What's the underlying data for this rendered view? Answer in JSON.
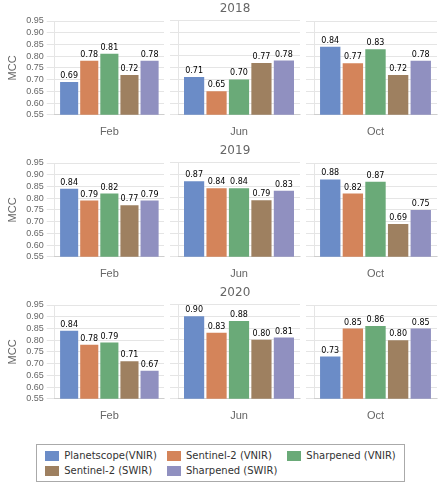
{
  "chart_data": [
    {
      "type": "bar",
      "ylabel": "MCC",
      "categories": [
        "Feb"
      ],
      "series": [
        {
          "name": "Planetscope(VNIR)",
          "color": "#6b8cc7",
          "values": [
            0.69
          ],
          "value_labels": [
            "0.69"
          ]
        },
        {
          "name": "Sentinel-2 (VNIR)",
          "color": "#d4845a",
          "values": [
            0.78
          ],
          "value_labels": [
            "0.78"
          ]
        },
        {
          "name": "Sharpened (VNIR)",
          "color": "#6aaa78",
          "values": [
            0.81
          ],
          "value_labels": [
            "0.81"
          ]
        },
        {
          "name": "Sentinel-2 (SWIR)",
          "color": "#9e8060",
          "values": [
            0.72
          ],
          "value_labels": [
            "0.72"
          ]
        },
        {
          "name": "Sharpened (SWIR)",
          "color": "#9090c0",
          "values": [
            0.78
          ],
          "value_labels": [
            "0.78"
          ]
        }
      ],
      "ylim": [
        0.55,
        0.95
      ],
      "yticks": [
        0.55,
        {
          "value": 0.6,
          "label": "0.60"
        },
        0.65,
        {
          "value": 0.7,
          "label": "0.70"
        },
        0.75,
        {
          "value": 0.8,
          "label": "0.80"
        },
        0.85,
        {
          "value": 0.9,
          "label": "0.90"
        },
        0.95
      ],
      "grid": true,
      "data_labels": true
    },
    {
      "type": "bar",
      "title": "2018",
      "categories": [
        "Jun"
      ],
      "series": [
        {
          "name": "Planetscope(VNIR)",
          "color": "#6b8cc7",
          "values": [
            0.71
          ],
          "value_labels": [
            "0.71"
          ]
        },
        {
          "name": "Sentinel-2 (VNIR)",
          "color": "#d4845a",
          "values": [
            0.65
          ],
          "value_labels": [
            "0.65"
          ]
        },
        {
          "name": "Sharpened (VNIR)",
          "color": "#6aaa78",
          "values": [
            0.7
          ],
          "value_labels": [
            "0.70"
          ]
        },
        {
          "name": "Sentinel-2 (SWIR)",
          "color": "#9e8060",
          "values": [
            0.77
          ],
          "value_labels": [
            "0.77"
          ]
        },
        {
          "name": "Sharpened (SWIR)",
          "color": "#9090c0",
          "values": [
            0.78
          ],
          "value_labels": [
            "0.78"
          ]
        }
      ],
      "ylim": [
        0.55,
        0.95
      ],
      "yticks": [
        0.55,
        {
          "value": 0.6,
          "label": "0.60"
        },
        0.65,
        {
          "value": 0.7,
          "label": "0.70"
        },
        0.75,
        {
          "value": 0.8,
          "label": "0.80"
        },
        0.85,
        {
          "value": 0.9,
          "label": "0.90"
        },
        0.95
      ],
      "grid": true,
      "data_labels": true,
      "tick_labels": "x"
    },
    {
      "type": "bar",
      "categories": [
        "Oct"
      ],
      "series": [
        {
          "name": "Planetscope(VNIR)",
          "color": "#6b8cc7",
          "values": [
            0.84
          ],
          "value_labels": [
            "0.84"
          ]
        },
        {
          "name": "Sentinel-2 (VNIR)",
          "color": "#d4845a",
          "values": [
            0.77
          ],
          "value_labels": [
            "0.77"
          ]
        },
        {
          "name": "Sharpened (VNIR)",
          "color": "#6aaa78",
          "values": [
            0.83
          ],
          "value_labels": [
            "0.83"
          ]
        },
        {
          "name": "Sentinel-2 (SWIR)",
          "color": "#9e8060",
          "values": [
            0.72
          ],
          "value_labels": [
            "0.72"
          ]
        },
        {
          "name": "Sharpened (SWIR)",
          "color": "#9090c0",
          "values": [
            0.78
          ],
          "value_labels": [
            "0.78"
          ]
        }
      ],
      "ylim": [
        0.55,
        0.95
      ],
      "yticks": [
        0.55,
        {
          "value": 0.6,
          "label": "0.60"
        },
        0.65,
        {
          "value": 0.7,
          "label": "0.70"
        },
        0.75,
        {
          "value": 0.8,
          "label": "0.80"
        },
        0.85,
        {
          "value": 0.9,
          "label": "0.90"
        },
        0.95
      ],
      "grid": true,
      "data_labels": true,
      "tick_labels": "x"
    },
    {
      "type": "bar",
      "ylabel": "MCC",
      "categories": [
        "Feb"
      ],
      "series": [
        {
          "name": "Planetscope(VNIR)",
          "color": "#6b8cc7",
          "values": [
            0.84
          ],
          "value_labels": [
            "0.84"
          ]
        },
        {
          "name": "Sentinel-2 (VNIR)",
          "color": "#d4845a",
          "values": [
            0.79
          ],
          "value_labels": [
            "0.79"
          ]
        },
        {
          "name": "Sharpened (VNIR)",
          "color": "#6aaa78",
          "values": [
            0.82
          ],
          "value_labels": [
            "0.82"
          ]
        },
        {
          "name": "Sentinel-2 (SWIR)",
          "color": "#9e8060",
          "values": [
            0.77
          ],
          "value_labels": [
            "0.77"
          ]
        },
        {
          "name": "Sharpened (SWIR)",
          "color": "#9090c0",
          "values": [
            0.79
          ],
          "value_labels": [
            "0.79"
          ]
        }
      ],
      "ylim": [
        0.55,
        0.95
      ],
      "yticks": [
        0.55,
        {
          "value": 0.6,
          "label": "0.60"
        },
        0.65,
        {
          "value": 0.7,
          "label": "0.70"
        },
        0.75,
        {
          "value": 0.8,
          "label": "0.80"
        },
        0.85,
        {
          "value": 0.9,
          "label": "0.90"
        },
        0.95
      ],
      "grid": true,
      "data_labels": true
    },
    {
      "type": "bar",
      "title": "2019",
      "categories": [
        "Jun"
      ],
      "series": [
        {
          "name": "Planetscope(VNIR)",
          "color": "#6b8cc7",
          "values": [
            0.87
          ],
          "value_labels": [
            "0.87"
          ]
        },
        {
          "name": "Sentinel-2 (VNIR)",
          "color": "#d4845a",
          "values": [
            0.84
          ],
          "value_labels": [
            "0.84"
          ]
        },
        {
          "name": "Sharpened (VNIR)",
          "color": "#6aaa78",
          "values": [
            0.84
          ],
          "value_labels": [
            "0.84"
          ]
        },
        {
          "name": "Sentinel-2 (SWIR)",
          "color": "#9e8060",
          "values": [
            0.79
          ],
          "value_labels": [
            "0.79"
          ]
        },
        {
          "name": "Sharpened (SWIR)",
          "color": "#9090c0",
          "values": [
            0.83
          ],
          "value_labels": [
            "0.83"
          ]
        }
      ],
      "ylim": [
        0.55,
        0.95
      ],
      "yticks": [
        0.55,
        {
          "value": 0.6,
          "label": "0.60"
        },
        0.65,
        {
          "value": 0.7,
          "label": "0.70"
        },
        0.75,
        {
          "value": 0.8,
          "label": "0.80"
        },
        0.85,
        {
          "value": 0.9,
          "label": "0.90"
        },
        0.95
      ],
      "grid": true,
      "data_labels": true,
      "tick_labels": "x"
    },
    {
      "type": "bar",
      "categories": [
        "Oct"
      ],
      "series": [
        {
          "name": "Planetscope(VNIR)",
          "color": "#6b8cc7",
          "values": [
            0.88
          ],
          "value_labels": [
            "0.88"
          ]
        },
        {
          "name": "Sentinel-2 (VNIR)",
          "color": "#d4845a",
          "values": [
            0.82
          ],
          "value_labels": [
            "0.82"
          ]
        },
        {
          "name": "Sharpened (VNIR)",
          "color": "#6aaa78",
          "values": [
            0.87
          ],
          "value_labels": [
            "0.87"
          ]
        },
        {
          "name": "Sentinel-2 (SWIR)",
          "color": "#9e8060",
          "values": [
            0.69
          ],
          "value_labels": [
            "0.69"
          ]
        },
        {
          "name": "Sharpened (SWIR)",
          "color": "#9090c0",
          "values": [
            0.75
          ],
          "value_labels": [
            "0.75"
          ]
        }
      ],
      "ylim": [
        0.55,
        0.95
      ],
      "yticks": [
        0.55,
        {
          "value": 0.6,
          "label": "0.60"
        },
        0.65,
        {
          "value": 0.7,
          "label": "0.70"
        },
        0.75,
        {
          "value": 0.8,
          "label": "0.80"
        },
        0.85,
        {
          "value": 0.9,
          "label": "0.90"
        },
        0.95
      ],
      "grid": true,
      "data_labels": true,
      "tick_labels": "x"
    },
    {
      "type": "bar",
      "ylabel": "MCC",
      "categories": [
        "Feb"
      ],
      "series": [
        {
          "name": "Planetscope(VNIR)",
          "color": "#6b8cc7",
          "values": [
            0.84
          ],
          "value_labels": [
            "0.84"
          ]
        },
        {
          "name": "Sentinel-2 (VNIR)",
          "color": "#d4845a",
          "values": [
            0.78
          ],
          "value_labels": [
            "0.78"
          ]
        },
        {
          "name": "Sharpened (VNIR)",
          "color": "#6aaa78",
          "values": [
            0.79
          ],
          "value_labels": [
            "0.79"
          ]
        },
        {
          "name": "Sentinel-2 (SWIR)",
          "color": "#9e8060",
          "values": [
            0.71
          ],
          "value_labels": [
            "0.71"
          ]
        },
        {
          "name": "Sharpened (SWIR)",
          "color": "#9090c0",
          "values": [
            0.67
          ],
          "value_labels": [
            "0.67"
          ]
        }
      ],
      "ylim": [
        0.55,
        0.95
      ],
      "yticks": [
        0.55,
        {
          "value": 0.6,
          "label": "0.60"
        },
        0.65,
        {
          "value": 0.7,
          "label": "0.70"
        },
        0.75,
        {
          "value": 0.8,
          "label": "0.80"
        },
        0.85,
        {
          "value": 0.9,
          "label": "0.90"
        },
        0.95
      ],
      "grid": true,
      "data_labels": true
    },
    {
      "type": "bar",
      "title": "2020",
      "categories": [
        "Jun"
      ],
      "series": [
        {
          "name": "Planetscope(VNIR)",
          "color": "#6b8cc7",
          "values": [
            0.9
          ],
          "value_labels": [
            "0.90"
          ]
        },
        {
          "name": "Sentinel-2 (VNIR)",
          "color": "#d4845a",
          "values": [
            0.83
          ],
          "value_labels": [
            "0.83"
          ]
        },
        {
          "name": "Sharpened (VNIR)",
          "color": "#6aaa78",
          "values": [
            0.88
          ],
          "value_labels": [
            "0.88"
          ]
        },
        {
          "name": "Sentinel-2 (SWIR)",
          "color": "#9e8060",
          "values": [
            0.8
          ],
          "value_labels": [
            "0.80"
          ]
        },
        {
          "name": "Sharpened (SWIR)",
          "color": "#9090c0",
          "values": [
            0.81
          ],
          "value_labels": [
            "0.81"
          ]
        }
      ],
      "ylim": [
        0.55,
        0.95
      ],
      "yticks": [
        0.55,
        {
          "value": 0.6,
          "label": "0.60"
        },
        0.65,
        {
          "value": 0.7,
          "label": "0.70"
        },
        0.75,
        {
          "value": 0.8,
          "label": "0.80"
        },
        0.85,
        {
          "value": 0.9,
          "label": "0.90"
        },
        0.95
      ],
      "grid": true,
      "data_labels": true,
      "tick_labels": "x",
      "legend": "bottom"
    },
    {
      "type": "bar",
      "categories": [
        "Oct"
      ],
      "series": [
        {
          "name": "Planetscope(VNIR)",
          "color": "#6b8cc7",
          "values": [
            0.73
          ],
          "value_labels": [
            "0.73"
          ]
        },
        {
          "name": "Sentinel-2 (VNIR)",
          "color": "#d4845a",
          "values": [
            0.85
          ],
          "value_labels": [
            "0.85"
          ]
        },
        {
          "name": "Sharpened (VNIR)",
          "color": "#6aaa78",
          "values": [
            0.86
          ],
          "value_labels": [
            "0.86"
          ]
        },
        {
          "name": "Sentinel-2 (SWIR)",
          "color": "#9e8060",
          "values": [
            0.8
          ],
          "value_labels": [
            "0.80"
          ]
        },
        {
          "name": "Sharpened (SWIR)",
          "color": "#9090c0",
          "values": [
            0.85
          ],
          "value_labels": [
            "0.85"
          ]
        }
      ],
      "ylim": [
        0.55,
        0.95
      ],
      "yticks": [
        0.55,
        {
          "value": 0.6,
          "label": "0.60"
        },
        0.65,
        {
          "value": 0.7,
          "label": "0.70"
        },
        0.75,
        {
          "value": 0.8,
          "label": "0.80"
        },
        0.85,
        {
          "value": 0.9,
          "label": "0.90"
        },
        0.95
      ],
      "grid": true,
      "data_labels": true,
      "tick_labels": "x"
    }
  ]
}
